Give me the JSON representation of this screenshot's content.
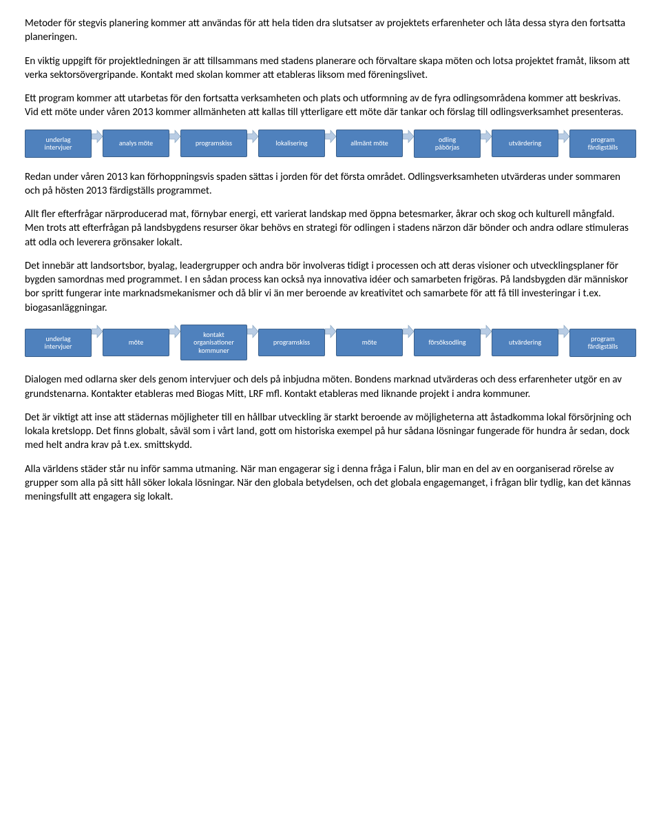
{
  "paragraphs": {
    "p1": "Metoder för stegvis planering kommer att användas för att hela tiden dra slutsatser av projektets erfarenheter och låta dessa styra den fortsatta planeringen.",
    "p2": "En viktig uppgift för projektledningen är att tillsammans med stadens planerare och förvaltare skapa möten och lotsa projektet framåt, liksom att verka sektorsövergripande. Kontakt med skolan kommer att etableras liksom med föreningslivet.",
    "p3": "Ett program kommer att utarbetas för den fortsatta verksamheten och plats och utformning av de fyra odlingsområdena kommer att beskrivas. Vid ett möte under våren 2013 kommer allmänheten att kallas till ytterligare ett möte där tankar och förslag till odlingsverksamhet presenteras.",
    "p4": "Redan under våren 2013 kan förhoppningsvis spaden sättas i jorden för det första området. Odlingsverksamheten utvärderas under sommaren och på hösten 2013 färdigställs programmet.",
    "p5": "Allt fler efterfrågar närproducerad mat, förnybar energi, ett varierat landskap med öppna betesmarker, åkrar och skog och kulturell mångfald. Men trots att efterfrågan på landsbygdens resurser ökar behövs en strategi för odlingen i stadens närzon där bönder och andra odlare stimuleras att odla och leverera grönsaker lokalt.",
    "p6": "Det innebär att landsortsbor, byalag, leadergrupper och andra bör involveras tidigt i processen och att deras visioner och utvecklingsplaner för bygden samordnas med programmet. I en sådan process kan också nya innovativa idéer och samarbeten frigöras. På landsbygden där människor bor spritt fungerar inte marknadsmekanismer och då blir vi än mer beroende av kreativitet och samarbete för att få till investeringar i t.ex. biogasanläggningar.",
    "p7": "Dialogen med odlarna sker dels genom intervjuer och dels på inbjudna möten. Bondens marknad utvärderas och dess erfarenheter utgör en av grundstenarna. Kontakter etableras med Biogas Mitt, LRF mfl. Kontakt etableras med liknande projekt i andra kommuner.",
    "p8": "Det är viktigt att inse att städernas möjligheter till en hållbar utveckling är starkt beroende av möjligheterna att åstadkomma lokal försörjning och lokala kretslopp. Det finns globalt, såväl som i vårt land, gott om historiska exempel på hur sådana lösningar fungerade för hundra år sedan, dock med helt andra krav på t.ex. smittskydd.",
    "p9": "Alla världens städer står nu inför samma utmaning. När man engagerar sig i denna fråga i Falun, blir man en del av en oorganiserad rörelse av grupper som alla på sitt håll söker lokala lösningar. När den globala betydelsen, och det globala engagemanget, i frågan blir tydlig, kan det kännas meningsfullt att engagera sig lokalt."
  },
  "flow1": {
    "boxes": [
      "underlag\nintervjuer",
      "analys möte",
      "programskiss",
      "lokalisering",
      "allmänt möte",
      "odling\npåbörjas",
      "utvärdering",
      "program\nfärdigställs"
    ],
    "box_color": "#4f81bd",
    "box_border": "#3a5f8a",
    "text_color": "#ffffff",
    "arrow_fill": "#b8cce4",
    "arrow_stroke": "#7f9db9",
    "font_size": 10
  },
  "flow2": {
    "boxes": [
      "underlag\nintervjuer",
      "möte",
      "kontakt\norganisationer\nkommuner",
      "programskiss",
      "möte",
      "försöksodling",
      "utvärdering",
      "program\nfärdigställs"
    ],
    "box_color": "#4f81bd",
    "box_border": "#3a5f8a",
    "text_color": "#ffffff",
    "arrow_fill": "#b8cce4",
    "arrow_stroke": "#7f9db9",
    "font_size": 10
  }
}
